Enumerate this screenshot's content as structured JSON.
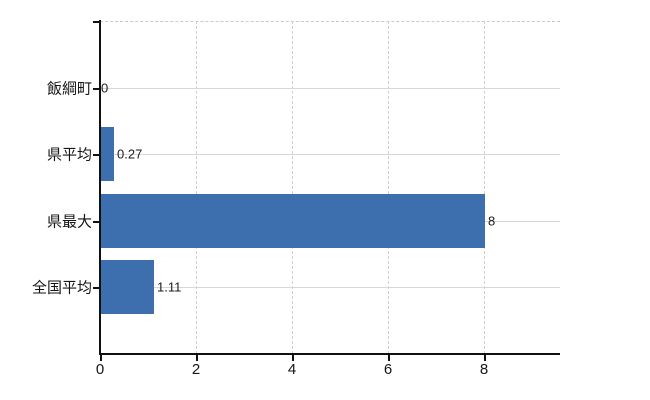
{
  "page": {
    "background": "#ffffff"
  },
  "chart_data": {
    "type": "bar",
    "orientation": "horizontal",
    "title": "",
    "xlabel": "",
    "ylabel": "",
    "categories": [
      "飯綱町",
      "県平均",
      "県最大",
      "全国平均"
    ],
    "values": [
      0,
      0.27,
      8,
      1.11
    ],
    "value_labels": [
      "0",
      "0.27",
      "8",
      "1.11"
    ],
    "x_ticks": [
      0,
      2,
      4,
      6,
      8
    ],
    "x_tick_labels": [
      "0",
      "2",
      "4",
      "6",
      "8"
    ],
    "xlim": [
      0,
      9.58
    ],
    "grid": true,
    "legend": false,
    "gridline_style": {
      "horizontal": "solid",
      "vertical": "dashed",
      "top_border": "dashed"
    },
    "colors": {
      "bar": "#3d6eae",
      "axis": "#111111",
      "h_grid": "#d3d9cf",
      "v_grid": "#d0d0cc",
      "text": "#151515"
    }
  }
}
